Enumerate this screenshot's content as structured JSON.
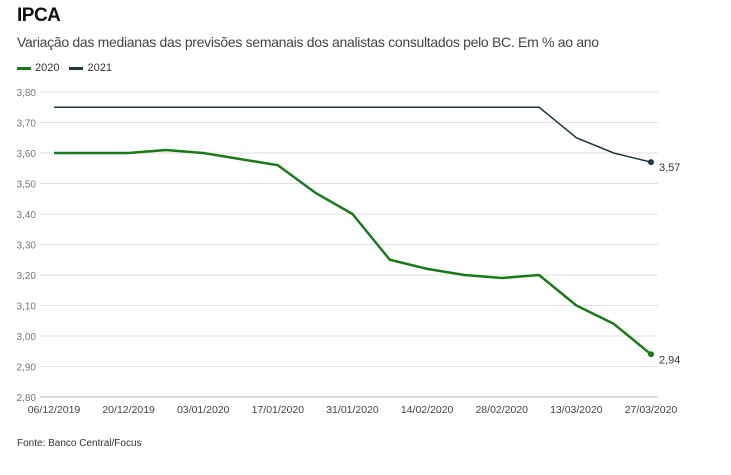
{
  "chart_data": {
    "type": "line",
    "title": "IPCA",
    "subtitle": "Variação das medianas das previsões semanais dos analistas consultados pelo BC. Em % ao ano",
    "x": [
      "06/12/2019",
      "13/12/2019",
      "20/12/2019",
      "27/12/2019",
      "03/01/2020",
      "10/01/2020",
      "17/01/2020",
      "24/01/2020",
      "31/01/2020",
      "07/02/2020",
      "14/02/2020",
      "21/02/2020",
      "28/02/2020",
      "06/03/2020",
      "13/03/2020",
      "20/03/2020",
      "27/03/2020"
    ],
    "x_tick_labels": [
      "06/12/2019",
      "20/12/2019",
      "03/01/2020",
      "17/01/2020",
      "31/01/2020",
      "14/02/2020",
      "28/02/2020",
      "13/03/2020",
      "27/03/2020"
    ],
    "series": [
      {
        "name": "2020",
        "color": "#1a7a1a",
        "values": [
          3.6,
          3.6,
          3.6,
          3.61,
          3.6,
          3.58,
          3.56,
          3.47,
          3.4,
          3.25,
          3.22,
          3.2,
          3.19,
          3.2,
          3.1,
          3.04,
          2.94
        ],
        "end_label": "2,94"
      },
      {
        "name": "2021",
        "color": "#1c3b3f",
        "values": [
          3.75,
          3.75,
          3.75,
          3.75,
          3.75,
          3.75,
          3.75,
          3.75,
          3.75,
          3.75,
          3.75,
          3.75,
          3.75,
          3.75,
          3.65,
          3.6,
          3.57
        ],
        "end_label": "3,57"
      }
    ],
    "ylim": [
      2.8,
      3.8
    ],
    "y_ticks": [
      2.8,
      2.9,
      3.0,
      3.1,
      3.2,
      3.3,
      3.4,
      3.5,
      3.6,
      3.7,
      3.8
    ],
    "y_tick_labels": [
      "2,80",
      "2,90",
      "3,00",
      "3,10",
      "3,20",
      "3,30",
      "3,40",
      "3,50",
      "3,60",
      "3,70",
      "3,80"
    ],
    "grid": true,
    "legend_position": "top-left",
    "source": "Fonte: Banco Central/Focus"
  }
}
